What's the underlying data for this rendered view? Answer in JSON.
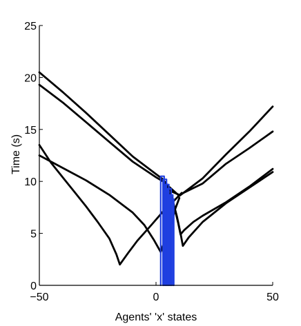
{
  "chart_data": {
    "type": "line",
    "title": "",
    "xlabel": "Agents' 'x' states",
    "ylabel": "Time (s)",
    "xlim": [
      -50,
      50
    ],
    "ylim": [
      0,
      25
    ],
    "xticks": [
      -50,
      0,
      50
    ],
    "yticks": [
      0,
      5,
      10,
      15,
      20,
      25
    ],
    "grid": false,
    "legend": "none",
    "colors": {
      "black_series": "#000000",
      "blue_series": "#1f3fe0"
    },
    "series": [
      {
        "color": "#000000",
        "points": [
          [
            -50,
            20.5
          ],
          [
            -40,
            18.6
          ],
          [
            -30,
            16.6
          ],
          [
            -20,
            14.5
          ],
          [
            -10,
            12.4
          ],
          [
            0,
            10.7
          ],
          [
            3,
            10.2
          ],
          [
            5,
            9.6
          ],
          [
            10,
            8.6
          ],
          [
            20,
            10.3
          ],
          [
            30,
            12.6
          ],
          [
            40,
            14.8
          ],
          [
            50,
            17.2
          ]
        ]
      },
      {
        "color": "#000000",
        "points": [
          [
            -50,
            19.3
          ],
          [
            -40,
            17.6
          ],
          [
            -30,
            15.7
          ],
          [
            -20,
            13.8
          ],
          [
            -10,
            11.9
          ],
          [
            0,
            10.4
          ],
          [
            3,
            10
          ],
          [
            6,
            9.1
          ],
          [
            10,
            8.7
          ],
          [
            20,
            9.8
          ],
          [
            30,
            11.7
          ],
          [
            40,
            13.2
          ],
          [
            50,
            14.8
          ]
        ]
      },
      {
        "color": "#000000",
        "points": [
          [
            -50,
            13.5
          ],
          [
            -45,
            11.8
          ],
          [
            -40,
            10.4
          ],
          [
            -35,
            9.0
          ],
          [
            -30,
            7.6
          ],
          [
            -25,
            6.1
          ],
          [
            -20,
            4.5
          ],
          [
            -17,
            3.0
          ],
          [
            -15.5,
            2.0
          ],
          [
            -12,
            3.1
          ],
          [
            -8,
            4.3
          ],
          [
            -2,
            5.8
          ],
          [
            3,
            7.1
          ],
          [
            8,
            8.2
          ],
          [
            11,
            8.9
          ]
        ]
      },
      {
        "color": "#000000",
        "points": [
          [
            -50,
            12.5
          ],
          [
            -40,
            11.3
          ],
          [
            -30,
            10.1
          ],
          [
            -20,
            8.7
          ],
          [
            -10,
            7.0
          ],
          [
            -5,
            5.8
          ],
          [
            -1,
            4.4
          ],
          [
            2,
            3.2
          ],
          [
            4,
            4.5
          ],
          [
            7,
            6.2
          ],
          [
            8,
            7.2
          ],
          [
            10,
            8.4
          ]
        ]
      },
      {
        "color": "#000000",
        "points": [
          [
            6,
            8.9
          ],
          [
            8,
            7.4
          ],
          [
            9.5,
            6.0
          ],
          [
            10.5,
            4.9
          ],
          [
            12,
            5.3
          ],
          [
            16,
            6.1
          ],
          [
            20,
            6.7
          ],
          [
            30,
            8.0
          ],
          [
            40,
            9.5
          ],
          [
            50,
            11.2
          ]
        ]
      },
      {
        "color": "#000000",
        "points": [
          [
            7,
            8.3
          ],
          [
            9,
            6.6
          ],
          [
            10.5,
            5.0
          ],
          [
            11.5,
            3.8
          ],
          [
            14,
            4.6
          ],
          [
            20,
            6.1
          ],
          [
            30,
            7.9
          ],
          [
            40,
            9.4
          ],
          [
            50,
            10.9
          ]
        ]
      },
      {
        "color": "#1f3fe0",
        "points": [
          [
            2,
            0
          ],
          [
            2,
            10.5
          ],
          [
            3.5,
            10.5
          ],
          [
            3.5,
            0
          ]
        ]
      },
      {
        "color": "#1f3fe0",
        "points": [
          [
            3,
            0
          ],
          [
            3,
            10.2
          ],
          [
            4.5,
            10.2
          ],
          [
            4.5,
            0
          ]
        ]
      },
      {
        "color": "#1f3fe0",
        "points": [
          [
            4,
            0
          ],
          [
            4,
            9.7
          ],
          [
            5.5,
            9.7
          ],
          [
            5.5,
            0
          ]
        ]
      },
      {
        "color": "#1f3fe0",
        "points": [
          [
            5,
            0
          ],
          [
            5,
            9.3
          ],
          [
            6.5,
            9.3
          ],
          [
            6.5,
            0
          ]
        ]
      },
      {
        "color": "#1f3fe0",
        "points": [
          [
            6,
            0
          ],
          [
            6,
            8.7
          ],
          [
            7.2,
            8.7
          ],
          [
            7.2,
            0
          ]
        ]
      },
      {
        "color": "#1f3fe0",
        "points": [
          [
            6.6,
            0
          ],
          [
            6.6,
            8.3
          ],
          [
            7.6,
            8.3
          ],
          [
            7.6,
            0
          ]
        ]
      }
    ]
  }
}
